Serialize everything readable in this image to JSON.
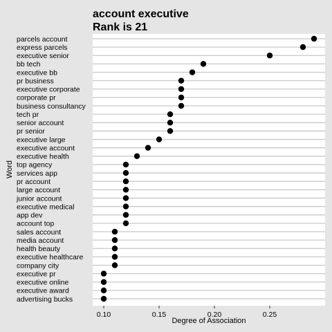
{
  "chart_data": {
    "type": "scatter",
    "title": "account executive",
    "subtitle": "Rank is 21",
    "xlabel": "Degree of Association",
    "ylabel": "Word",
    "xlim": [
      0.09,
      0.3
    ],
    "x_ticks": [
      "0.10",
      "0.15",
      "0.20",
      "0.25"
    ],
    "x_tick_values": [
      0.1,
      0.15,
      0.2,
      0.25
    ],
    "grid": true,
    "legend": "none",
    "point_color": "#000000",
    "background_color": "#ffffff",
    "categories": [
      "parcels account",
      "express parcels",
      "executive senior",
      "bb tech",
      "executive bb",
      "pr business",
      "executive corporate",
      "corporate pr",
      "business consultancy",
      "tech pr",
      "senior account",
      "pr senior",
      "executive large",
      "executive account",
      "executive health",
      "top agency",
      "services app",
      "pr account",
      "large account",
      "junior account",
      "executive medical",
      "app dev",
      "account top",
      "sales account",
      "media account",
      "health beauty",
      "executive healthcare",
      "company city",
      "executive pr",
      "executive online",
      "executive award",
      "advertising bucks"
    ],
    "values": [
      0.29,
      0.28,
      0.25,
      0.19,
      0.18,
      0.17,
      0.17,
      0.17,
      0.17,
      0.16,
      0.16,
      0.16,
      0.15,
      0.14,
      0.13,
      0.12,
      0.12,
      0.12,
      0.12,
      0.12,
      0.12,
      0.12,
      0.12,
      0.11,
      0.11,
      0.11,
      0.11,
      0.11,
      0.1,
      0.1,
      0.1,
      0.1
    ]
  }
}
